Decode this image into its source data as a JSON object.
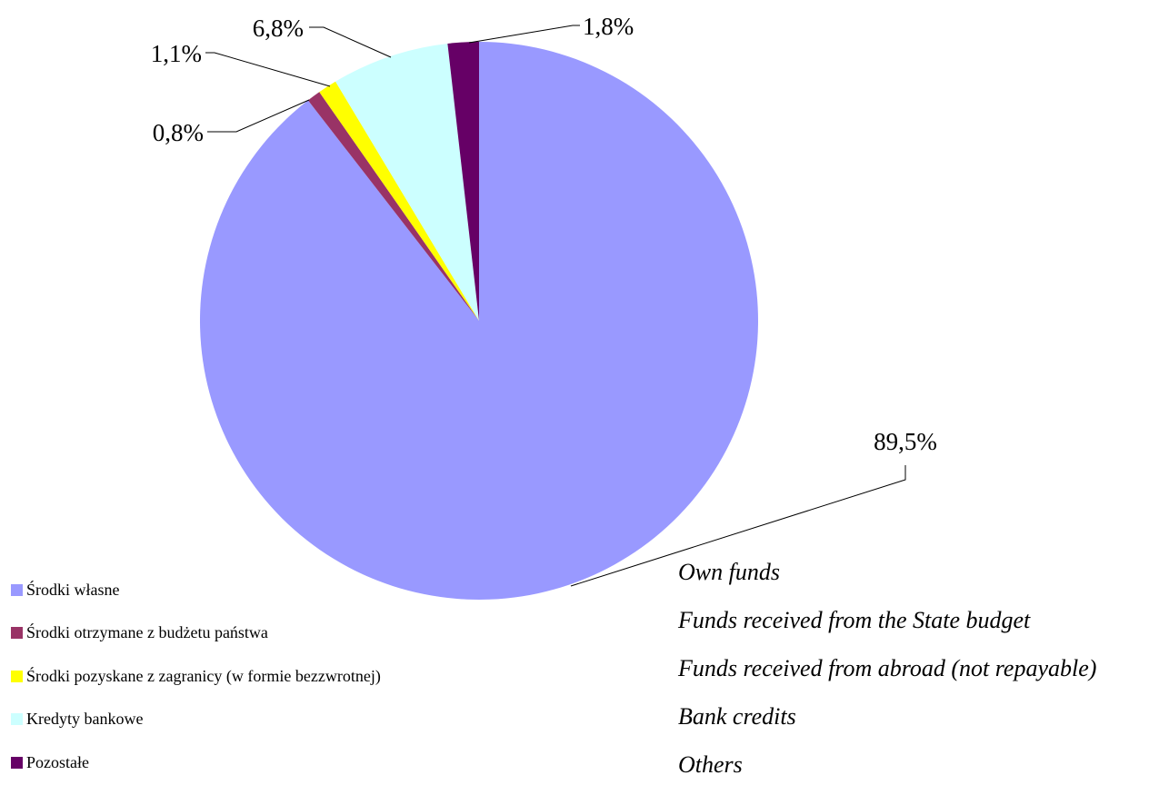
{
  "chart_data": {
    "type": "pie",
    "title": "",
    "slices": [
      {
        "label": "Środki własne",
        "translation": "Own funds",
        "value": 89.5,
        "value_label": "89,5%",
        "color": "#9999ff"
      },
      {
        "label": "Środki otrzymane z budżetu państwa",
        "translation": "Funds received from the State budget",
        "value": 0.8,
        "value_label": "0,8%",
        "color": "#993366"
      },
      {
        "label": "Środki pozyskane z zagranicy (w formie bezzwrotnej)",
        "translation": "Funds received from abroad (not repayable)",
        "value": 1.1,
        "value_label": "1,1%",
        "color": "#ffff00"
      },
      {
        "label": "Kredyty bankowe",
        "translation": "Bank credits",
        "value": 6.8,
        "value_label": "6,8%",
        "color": "#ccffff"
      },
      {
        "label": "Pozostałe",
        "translation": "Others",
        "value": 1.8,
        "value_label": "1,8%",
        "color": "#660066"
      }
    ],
    "start_angle_deg": 0,
    "direction": "clockwise",
    "legend_position": "bottom-left"
  }
}
